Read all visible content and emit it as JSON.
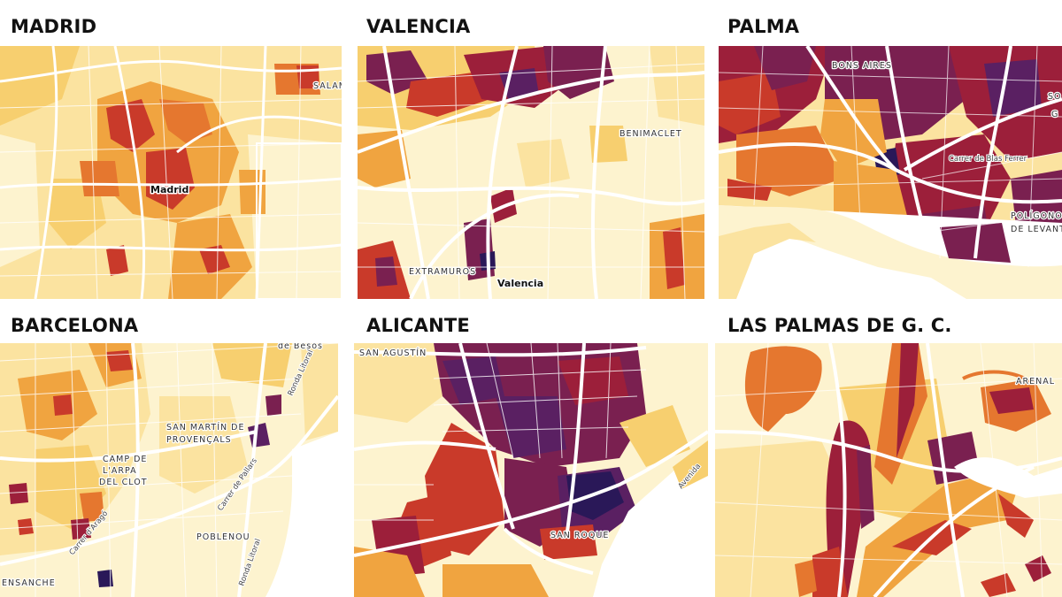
{
  "colors": {
    "pale": "#fdf3cf",
    "light": "#fbe3a0",
    "yellow": "#f7cf6f",
    "orange": "#f0a440",
    "darkorange": "#e5772f",
    "red": "#c93a2a",
    "crimson": "#9c1f3a",
    "plum": "#7a2050",
    "purple": "#5a2062",
    "navy": "#2a1858",
    "road": "#ffffff",
    "water": "#ffffff"
  },
  "maps": [
    {
      "id": "madrid",
      "title": "MADRID",
      "labels": [
        {
          "text": "Madrid",
          "kind": "city"
        },
        {
          "text": "SALAM",
          "kind": "district"
        }
      ]
    },
    {
      "id": "valencia",
      "title": "VALENCIA",
      "labels": [
        {
          "text": "BENIMACLET",
          "kind": "district"
        },
        {
          "text": "EXTRAMUROS",
          "kind": "district"
        },
        {
          "text": "Valencia",
          "kind": "city"
        }
      ]
    },
    {
      "id": "palma",
      "title": "PALMA",
      "labels": [
        {
          "text": "BONS AIRES",
          "kind": "district"
        },
        {
          "text": "Carrer de Blas Ferrer",
          "kind": "street"
        },
        {
          "text": "POLÍGONO",
          "kind": "district"
        },
        {
          "text": "DE LEVANT",
          "kind": "district"
        },
        {
          "text": "SO",
          "kind": "district"
        },
        {
          "text": "G",
          "kind": "district"
        }
      ]
    },
    {
      "id": "barcelona",
      "title": "BARCELONA",
      "labels": [
        {
          "text": "de Besòs",
          "kind": "district"
        },
        {
          "text": "Ronda Litoral",
          "kind": "street"
        },
        {
          "text": "SAN MARTÍN DE",
          "kind": "district"
        },
        {
          "text": "PROVENÇALS",
          "kind": "district"
        },
        {
          "text": "CAMP DE",
          "kind": "district"
        },
        {
          "text": "L'ARPA",
          "kind": "district"
        },
        {
          "text": "DEL CLOT",
          "kind": "district"
        },
        {
          "text": "Carrer de Pallars",
          "kind": "street"
        },
        {
          "text": "Carrer d'Aragó",
          "kind": "street"
        },
        {
          "text": "POBLENOU",
          "kind": "district"
        },
        {
          "text": "Ronda Litoral",
          "kind": "street"
        },
        {
          "text": "ENSANCHE",
          "kind": "district"
        }
      ]
    },
    {
      "id": "alicante",
      "title": "ALICANTE",
      "labels": [
        {
          "text": "SAN AGUSTÍN",
          "kind": "district"
        },
        {
          "text": "SAN ROQUE",
          "kind": "district"
        },
        {
          "text": "Avenida",
          "kind": "street"
        }
      ]
    },
    {
      "id": "laspalmas",
      "title": "LAS PALMAS DE G. C.",
      "labels": [
        {
          "text": "ARENAL",
          "kind": "district"
        }
      ]
    }
  ]
}
